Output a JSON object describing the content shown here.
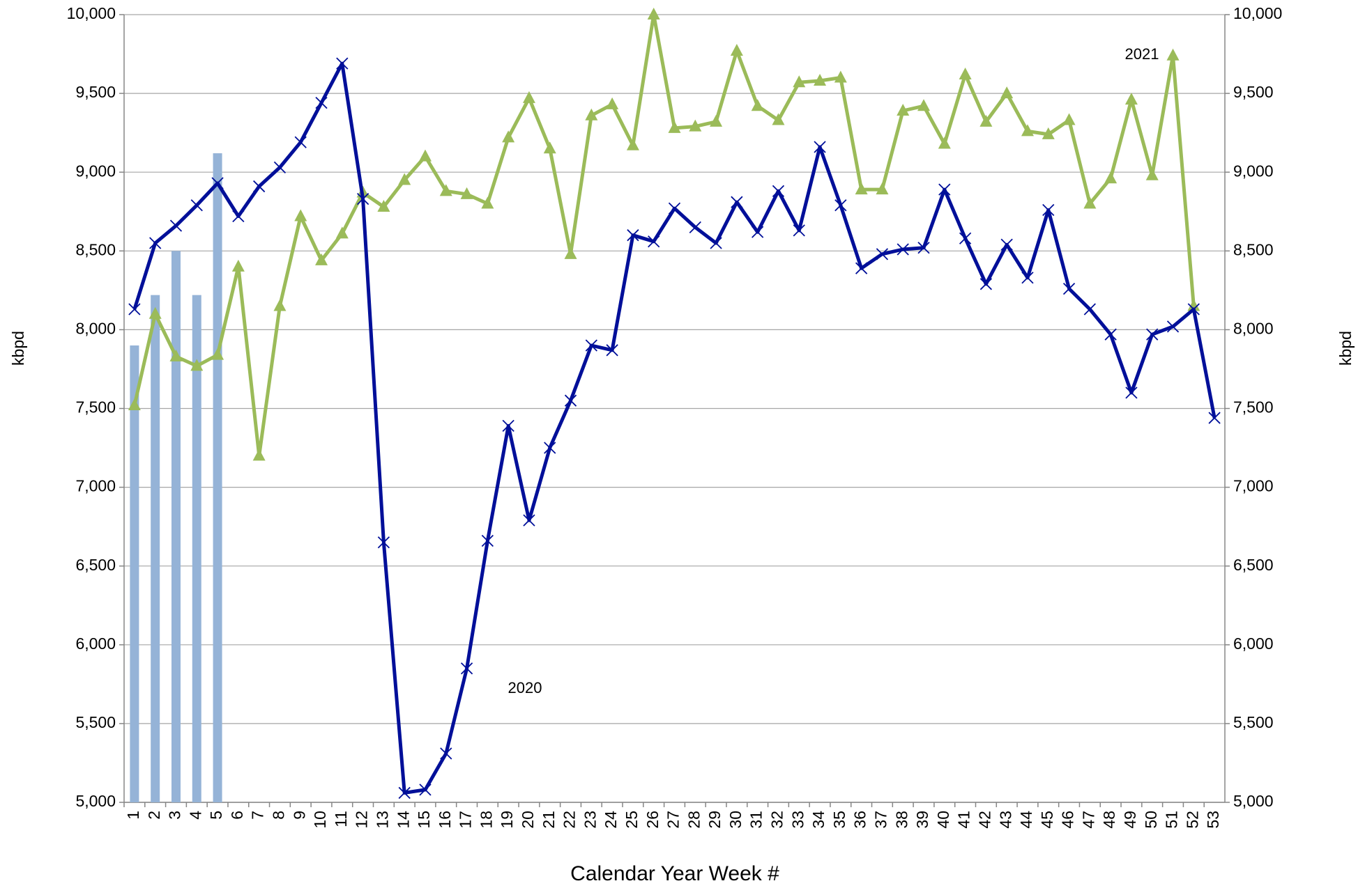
{
  "chart_data": {
    "type": "line",
    "x_label": "Calendar Year Week #",
    "y_label": "kbpd",
    "y2_label": "kbpd",
    "categories": [
      "1",
      "2",
      "3",
      "4",
      "5",
      "6",
      "7",
      "8",
      "9",
      "10",
      "11",
      "12",
      "13",
      "14",
      "15",
      "16",
      "17",
      "18",
      "19",
      "20",
      "21",
      "22",
      "23",
      "24",
      "25",
      "26",
      "27",
      "28",
      "29",
      "30",
      "31",
      "32",
      "33",
      "34",
      "35",
      "36",
      "37",
      "38",
      "39",
      "40",
      "41",
      "42",
      "43",
      "44",
      "45",
      "46",
      "47",
      "48",
      "49",
      "50",
      "51",
      "52",
      "53"
    ],
    "ylim": [
      5000,
      10000
    ],
    "yticks": [
      {
        "value": 5000,
        "label": "5,000"
      },
      {
        "value": 5500,
        "label": "5,500"
      },
      {
        "value": 6000,
        "label": "6,000"
      },
      {
        "value": 6500,
        "label": "6,500"
      },
      {
        "value": 7000,
        "label": "7,000"
      },
      {
        "value": 7500,
        "label": "7,500"
      },
      {
        "value": 8000,
        "label": "8,000"
      },
      {
        "value": 8500,
        "label": "8,500"
      },
      {
        "value": 9000,
        "label": "9,000"
      },
      {
        "value": 9500,
        "label": "9,500"
      },
      {
        "value": 10000,
        "label": "10,000"
      }
    ],
    "y2lim": [
      5000,
      10000
    ],
    "y2ticks": [
      {
        "value": 5000,
        "label": "5,000"
      },
      {
        "value": 5500,
        "label": "5,500"
      },
      {
        "value": 6000,
        "label": "6,000"
      },
      {
        "value": 6500,
        "label": "6,500"
      },
      {
        "value": 7000,
        "label": "7,000"
      },
      {
        "value": 7500,
        "label": "7,500"
      },
      {
        "value": 8000,
        "label": "8,000"
      },
      {
        "value": 8500,
        "label": "8,500"
      },
      {
        "value": 9000,
        "label": "9,000"
      },
      {
        "value": 9500,
        "label": "9,500"
      },
      {
        "value": 10000,
        "label": "10,000"
      }
    ],
    "grid": true,
    "series": [
      {
        "name": "2021",
        "kind": "bar",
        "color": "#95b3d7",
        "values": [
          7900,
          8220,
          8500,
          8220,
          9120,
          null,
          null,
          null,
          null,
          null,
          null,
          null,
          null,
          null,
          null,
          null,
          null,
          null,
          null,
          null,
          null,
          null,
          null,
          null,
          null,
          null,
          null,
          null,
          null,
          null,
          null,
          null,
          null,
          null,
          null,
          null,
          null,
          null,
          null,
          null,
          null,
          null,
          null,
          null,
          null,
          null,
          null,
          null,
          null,
          null,
          null,
          null,
          null
        ]
      },
      {
        "kind": "line",
        "marker": "triangle",
        "color": "#9bbb59",
        "values": [
          7520,
          8100,
          7830,
          7770,
          7840,
          8400,
          7200,
          8150,
          8720,
          8440,
          8610,
          8870,
          8780,
          8950,
          9100,
          8880,
          8860,
          8800,
          9220,
          9470,
          9150,
          8480,
          9360,
          9430,
          9170,
          10000,
          9280,
          9290,
          9320,
          9770,
          9420,
          9330,
          9570,
          9580,
          9600,
          8890,
          8890,
          9390,
          9420,
          9180,
          9620,
          9320,
          9500,
          9260,
          9240,
          9330,
          8800,
          8960,
          9460,
          8980,
          9740,
          8150,
          null
        ]
      },
      {
        "name": "2020",
        "kind": "line",
        "marker": "x",
        "color": "#000f99",
        "values": [
          8130,
          8550,
          8660,
          8790,
          8930,
          8720,
          8910,
          9030,
          9190,
          9440,
          9690,
          8830,
          6650,
          5060,
          5080,
          5310,
          5850,
          6660,
          7390,
          6790,
          7250,
          7550,
          7900,
          7870,
          8600,
          8560,
          8770,
          8650,
          8550,
          8810,
          8620,
          8880,
          8630,
          9160,
          8790,
          8390,
          8480,
          8510,
          8520,
          8890,
          8580,
          8290,
          8540,
          8330,
          8760,
          8260,
          8130,
          7970,
          7600,
          7970,
          8020,
          8130,
          7440
        ]
      }
    ]
  }
}
